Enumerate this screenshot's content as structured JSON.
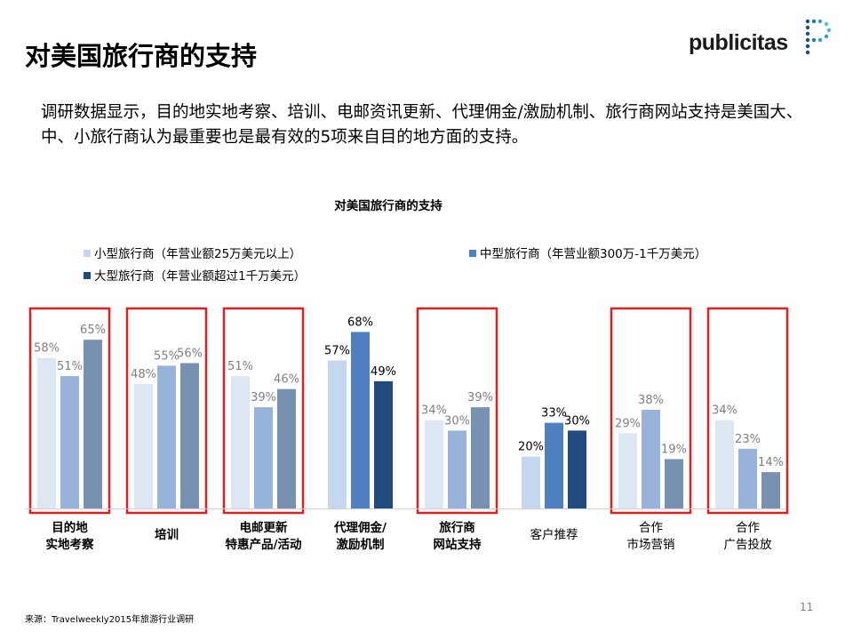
{
  "header": {
    "title": "对美国旅行商的支持",
    "logo_text": "publicitas"
  },
  "intro": "调研数据显示，目的地实地考察、培训、电邮资讯更新、代理佣金/激励机制、旅行商网站支持是美国大、中、小旅行商认为最重要也是最有效的5项来自目的地方面的支持。",
  "chart_data": {
    "type": "bar",
    "title": "对美国旅行商的支持",
    "categories": [
      "目的地\n实地考察",
      "培训",
      "电邮更新\n特惠产品/活动",
      "代理佣金/\n激励机制",
      "旅行商\n网站支持",
      "客户推荐",
      "合作\n市场营销",
      "合作\n广告投放"
    ],
    "series": [
      {
        "name": "小型旅行商（年营业额25万美元以上）",
        "values": [
          58,
          48,
          51,
          57,
          34,
          20,
          29,
          34
        ]
      },
      {
        "name": "中型旅行商（年营业额300万-1千万美元）",
        "values": [
          51,
          55,
          39,
          68,
          30,
          33,
          38,
          23
        ]
      },
      {
        "name": "大型旅行商（年营业额超过1千万美元）",
        "values": [
          65,
          56,
          46,
          49,
          39,
          30,
          19,
          14
        ]
      }
    ],
    "value_suffix": "%",
    "highlighted_categories": [
      0,
      1,
      2,
      4,
      6,
      7
    ],
    "bold_categories": [
      0,
      1,
      2,
      3,
      4
    ],
    "legend_position": "top-left",
    "grid": false,
    "colors": {
      "normal": [
        "#c5d7ee",
        "#4e7fbe",
        "#1f4b7f"
      ],
      "faded": [
        "#dde7f4",
        "#97b3d9",
        "#7991b1"
      ],
      "normal_label": "#000000",
      "faded_label": "#7f7f7f",
      "highlight_box": "#e02020"
    }
  },
  "footer": {
    "source": "来源：Travelweekly2015年旅游行业调研",
    "page_number": "11"
  }
}
